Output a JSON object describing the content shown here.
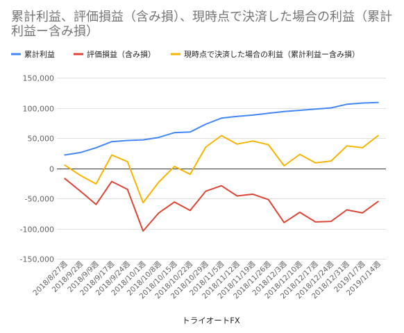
{
  "chart_data": {
    "type": "line",
    "title": "累計利益、評価損益（含み損）、現時点で決済した場合の利益（累計利益ー含み損）",
    "xlabel": "トライオートFX",
    "ylabel": "",
    "ylim": [
      -150000,
      150000
    ],
    "yticks": [
      150000,
      100000,
      50000,
      0,
      -50000,
      -100000,
      -150000
    ],
    "ytick_labels": [
      "150,000",
      "100,000",
      "50,000",
      "0",
      "-50,000",
      "-100,000",
      "-150,000"
    ],
    "grid": true,
    "legend_position": "top-left",
    "x_labels": [
      "2018/8/27週",
      "2018/9/2週",
      "2018/9/9週",
      "2018/9/17週",
      "2018/9/24週",
      "2018/10/1週",
      "2018/10/8週",
      "2018/10/15週",
      "2018/10/22週",
      "2018/10/29週",
      "2018/11/5週",
      "2018/11/12週",
      "2018/11/19週",
      "2018/11/26週",
      "2018/12/3週",
      "2018/12/10週",
      "2018/12/17週",
      "2018/12/24週",
      "2018/12/31週",
      "2019/1/7週",
      "2019/1/14週"
    ],
    "x_points": [
      "",
      "2018/8/27週",
      "",
      "2018/9/2週",
      "",
      "2018/9/9週",
      "",
      "2018/9/17週",
      "",
      "2018/9/24週",
      "",
      "2018/10/1週",
      "",
      "2018/10/8週",
      "",
      "2018/10/15週",
      "",
      "2018/10/22週",
      "",
      "2018/10/29週",
      "",
      "2018/11/5週",
      "",
      "2018/11/12週",
      "",
      "2018/11/19週",
      "",
      "2018/11/26週",
      "",
      "2018/12/3週",
      "",
      "2018/12/10週",
      "",
      "2018/12/17週",
      "",
      "2018/12/24週",
      "",
      "2018/12/31週",
      "",
      "2019/1/7週",
      "",
      "2019/1/14週"
    ],
    "series": [
      {
        "name": "累計利益",
        "color": "#4285f4",
        "values": [
          22000,
          26000,
          34000,
          44000,
          46000,
          47000,
          51000,
          59000,
          60000,
          73000,
          83000,
          86000,
          88000,
          91000,
          94000,
          96000,
          98000,
          100000,
          106000,
          108000,
          109000
        ]
      },
      {
        "name": "評価損益（含み損）",
        "color": "#db4437",
        "values": [
          -17000,
          -38000,
          -60000,
          -22000,
          -35000,
          -104000,
          -74000,
          -56000,
          -70000,
          -38000,
          -29000,
          -46000,
          -43000,
          -52000,
          -90000,
          -73000,
          -89000,
          -88000,
          -69000,
          -74000,
          -55000
        ]
      },
      {
        "name": "現時点で決済した場合の利益（累計利益ー含み損）",
        "color": "#f4b400",
        "values": [
          5000,
          -12000,
          -26000,
          22000,
          11000,
          -57000,
          -23000,
          3000,
          -10000,
          35000,
          54000,
          40000,
          45000,
          39000,
          4000,
          23000,
          9000,
          12000,
          37000,
          34000,
          54000
        ]
      }
    ]
  }
}
